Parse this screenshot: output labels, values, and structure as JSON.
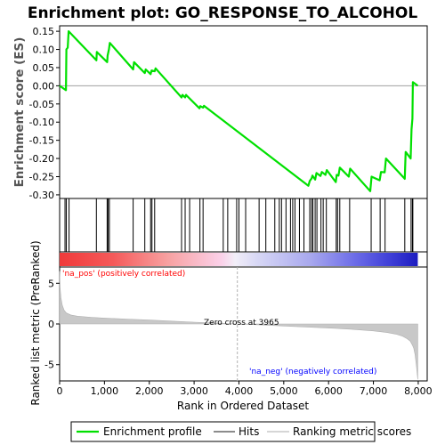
{
  "chart_data": {
    "type": "line",
    "title": "Enrichment plot: GO_RESPONSE_TO_ALCOHOL",
    "colors": {
      "profile": "#00e000",
      "hits": "#000000",
      "ranking_fill": "#c8c8c8",
      "pos_label": "#ff0000",
      "neg_label": "#0000ff",
      "zero_line": "#a0a0a0"
    },
    "enrichment_panel": {
      "ylabel": "Enrichment score (ES)",
      "ylim": [
        -0.31,
        0.165
      ],
      "yticks": [
        0.15,
        0.1,
        0.05,
        0.0,
        -0.05,
        -0.1,
        -0.15,
        -0.2,
        -0.25,
        -0.3
      ],
      "ytick_labels": [
        "0.15",
        "0.10",
        "0.05",
        "0.00",
        "-0.05",
        "-0.10",
        "-0.15",
        "-0.20",
        "-0.25",
        "-0.30"
      ],
      "series": {
        "name": "Enrichment profile",
        "x": [
          0,
          140,
          150,
          180,
          200,
          820,
          830,
          1060,
          1070,
          1100,
          1120,
          1640,
          1660,
          1900,
          1920,
          2030,
          2050,
          2120,
          2140,
          2720,
          2740,
          2800,
          2820,
          3120,
          3140,
          3200,
          3220,
          5550,
          5580,
          5620,
          5640,
          5700,
          5730,
          5820,
          5850,
          5930,
          5960,
          6160,
          6180,
          6220,
          6250,
          6450,
          6480,
          6930,
          6960,
          7140,
          7170,
          7250,
          7280,
          7700,
          7720,
          7830,
          7850,
          7870,
          7880,
          7990
        ],
        "y": [
          0.0,
          -0.012,
          0.1,
          0.105,
          0.15,
          0.07,
          0.093,
          0.065,
          0.083,
          0.1,
          0.118,
          0.045,
          0.065,
          0.035,
          0.045,
          0.032,
          0.042,
          0.04,
          0.048,
          -0.032,
          -0.025,
          -0.032,
          -0.025,
          -0.062,
          -0.056,
          -0.06,
          -0.055,
          -0.275,
          -0.262,
          -0.255,
          -0.247,
          -0.258,
          -0.24,
          -0.248,
          -0.237,
          -0.245,
          -0.232,
          -0.265,
          -0.245,
          -0.247,
          -0.225,
          -0.25,
          -0.228,
          -0.29,
          -0.25,
          -0.26,
          -0.237,
          -0.238,
          -0.2,
          -0.256,
          -0.182,
          -0.2,
          -0.12,
          -0.09,
          0.01,
          0.0
        ]
      }
    },
    "hits_panel": {
      "legend_name": "Hits",
      "hit_positions": [
        120,
        150,
        210,
        820,
        1060,
        1080,
        1110,
        1640,
        1900,
        2030,
        2060,
        2120,
        2720,
        2800,
        2900,
        3130,
        3200,
        3650,
        3750,
        3950,
        4000,
        4150,
        4450,
        4600,
        4800,
        4900,
        4950,
        5050,
        5150,
        5200,
        5250,
        5350,
        5450,
        5580,
        5620,
        5650,
        5700,
        5740,
        5830,
        5880,
        5950,
        6170,
        6200,
        6250,
        6470,
        6950,
        7150,
        7260,
        7700,
        7840,
        7870,
        7880
      ]
    },
    "ranking_panel": {
      "ylabel": "Ranked list metric (PreRanked)",
      "legend_name": "Ranking metric scores",
      "xlabel": "Rank in Ordered Dataset",
      "xlim": [
        0,
        8200
      ],
      "ylim": [
        -7,
        7
      ],
      "xticks": [
        0,
        1000,
        2000,
        3000,
        4000,
        5000,
        6000,
        7000,
        8000
      ],
      "xtick_labels": [
        "0",
        "1,000",
        "2,000",
        "3,000",
        "4,000",
        "5,000",
        "6,000",
        "7,000",
        "8,000"
      ],
      "yticks": [
        5,
        0,
        -5
      ],
      "ytick_labels": [
        "5",
        "0",
        "-5"
      ],
      "n_genes": 7990,
      "zero_cross": 3965,
      "metric_curve": {
        "x": [
          0,
          10,
          30,
          60,
          100,
          150,
          250,
          400,
          700,
          1000,
          1500,
          2000,
          2500,
          3000,
          3500,
          3965,
          4500,
          5000,
          5500,
          6000,
          6500,
          7000,
          7300,
          7500,
          7650,
          7750,
          7820,
          7870,
          7900,
          7930,
          7960,
          7990
        ],
        "y": [
          6.5,
          4.5,
          3.2,
          2.3,
          1.7,
          1.35,
          1.1,
          0.95,
          0.82,
          0.72,
          0.6,
          0.48,
          0.35,
          0.22,
          0.1,
          0.0,
          -0.12,
          -0.25,
          -0.38,
          -0.5,
          -0.65,
          -0.85,
          -1.05,
          -1.25,
          -1.5,
          -1.8,
          -2.1,
          -2.6,
          -3.0,
          -3.8,
          -5.2,
          -6.8
        ]
      }
    },
    "annotations": {
      "pos_label": "'na_pos' (positively correlated)",
      "neg_label": "'na_neg' (negatively correlated)",
      "zero_cross_label": "Zero cross at 3965"
    },
    "legend": {
      "entries": [
        "Enrichment profile",
        "Hits",
        "Ranking metric scores"
      ]
    }
  }
}
